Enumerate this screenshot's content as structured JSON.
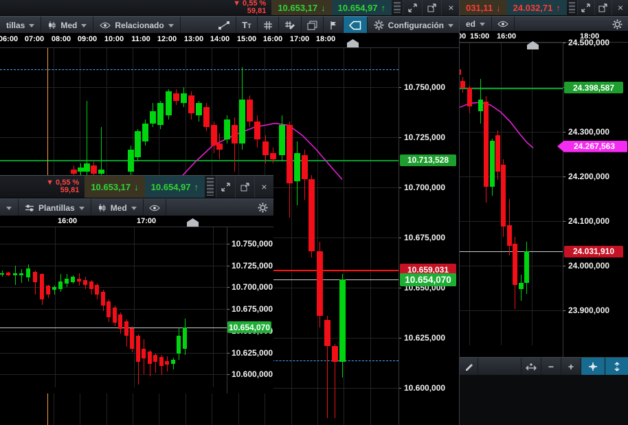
{
  "main_window": {
    "ticker": {
      "change_pct": "▼ 0,55 %",
      "change_value": "59,81",
      "sell": "10.653,17",
      "buy": "10.654,97"
    },
    "toolbar": {
      "templates": "tillas",
      "indicator": "Med",
      "related": "Relacionado",
      "settings": "Configuración"
    }
  },
  "second_window": {
    "ticker": {
      "change_pct": "▼ 0,55 %",
      "change_value": "59,81",
      "sell": "10.653,17",
      "buy": "10.654,97"
    },
    "toolbar": {
      "templates": "Plantillas",
      "indicator": "Med"
    }
  },
  "right_window": {
    "ticker": {
      "sell": "031,11",
      "buy": "24.032,71"
    },
    "toolbar": {
      "indicator": "ed"
    },
    "bottom_bar": {
      "minus": "−",
      "plus": "+"
    }
  },
  "chart_data": [
    {
      "id": "main",
      "type": "candlestick",
      "up_color": "#00d60f",
      "down_color": "#f30f18",
      "price_ticks": [
        {
          "label": "10.750,000",
          "value": 10750
        },
        {
          "label": "10.725,000",
          "value": 10725
        },
        {
          "label": "10.700,000",
          "value": 10700
        },
        {
          "label": "10.675,000",
          "value": 10675
        },
        {
          "label": "10.650,000",
          "value": 10650
        },
        {
          "label": "10.625,000",
          "value": 10625
        },
        {
          "label": "10.600,000",
          "value": 10600
        }
      ],
      "x_ticks": [
        {
          "label": "06:00",
          "x": 12
        },
        {
          "label": "07:00",
          "x": 50
        },
        {
          "label": "08:00",
          "x": 89
        },
        {
          "label": "09:00",
          "x": 127
        },
        {
          "label": "10:00",
          "x": 166
        },
        {
          "label": "11:00",
          "x": 205
        },
        {
          "label": "12:00",
          "x": 243
        },
        {
          "label": "13:00",
          "x": 282
        },
        {
          "label": "14:00",
          "x": 320
        },
        {
          "label": "15:00",
          "x": 359
        },
        {
          "label": "16:00",
          "x": 397
        },
        {
          "label": "17:00",
          "x": 436
        },
        {
          "label": "18:00",
          "x": 474
        }
      ],
      "hlines": [
        {
          "value": 10758.9,
          "color": "#4da6ff",
          "dash": true
        },
        {
          "value": 10713.528,
          "color": "#00a32e",
          "t": 2
        },
        {
          "value": 10659.031,
          "color": "#ff1212",
          "t": 2
        },
        {
          "value": 10654.07,
          "color": "#c9cdd1",
          "t": 1
        },
        {
          "value": 10613.7,
          "color": "#4da6ff",
          "dash": true
        }
      ],
      "vlines": [
        {
          "x": 69,
          "color": "#ff9b40"
        }
      ],
      "chips": [
        {
          "label": "10.713,528",
          "value": 10713.528,
          "bg": "#1e9e2e"
        },
        {
          "label": "10.659,031",
          "value": 10659.031,
          "bg": "#c51224"
        },
        {
          "label": "10.654,070",
          "value": 10654.07,
          "bg": "#1fae35",
          "big": true
        }
      ],
      "ma": {
        "color": "#e51fd4",
        "points": [
          [
            263,
            10705
          ],
          [
            285,
            10713
          ],
          [
            310,
            10721
          ],
          [
            340,
            10726
          ],
          [
            370,
            10730
          ],
          [
            400,
            10732
          ],
          [
            420,
            10731
          ],
          [
            440,
            10726
          ],
          [
            460,
            10719
          ],
          [
            480,
            10711
          ],
          [
            498,
            10704
          ]
        ]
      },
      "candles": [
        [
          107,
          10709,
          10711,
          10705,
          10707
        ],
        [
          117,
          10708,
          10712,
          10704,
          10710
        ],
        [
          126,
          10708,
          10743,
          10705,
          10712
        ],
        [
          136,
          10711,
          10713,
          10702,
          10707
        ],
        [
          147,
          10707,
          10730,
          10704,
          10709
        ],
        [
          190,
          10708,
          10721,
          10706,
          10719
        ],
        [
          200,
          10715,
          10729,
          10713,
          10728
        ],
        [
          211,
          10723,
          10734,
          10721,
          10732
        ],
        [
          222,
          10732,
          10742,
          10730,
          10738
        ],
        [
          233,
          10731,
          10743,
          10729,
          10742
        ],
        [
          245,
          10736,
          10749,
          10734,
          10748
        ],
        [
          256,
          10747,
          10749,
          10741,
          10743
        ],
        [
          267,
          10742,
          10750,
          10740,
          10747
        ],
        [
          278,
          10746,
          10748,
          10734,
          10737
        ],
        [
          289,
          10736,
          10743,
          10733,
          10742
        ],
        [
          300,
          10740,
          10742,
          10728,
          10730
        ],
        [
          311,
          10731,
          10733,
          10717,
          10721
        ],
        [
          319,
          10722,
          10727,
          10714,
          10719
        ],
        [
          330,
          10724,
          10736,
          10722,
          10734
        ],
        [
          341,
          10731,
          10735,
          10708,
          10722
        ],
        [
          352,
          10722,
          10760,
          10719,
          10744
        ],
        [
          363,
          10744,
          10746,
          10730,
          10733
        ],
        [
          374,
          10733,
          10736,
          10720,
          10724
        ],
        [
          386,
          10723,
          10726,
          10712,
          10716
        ],
        [
          397,
          10717,
          10720,
          10712,
          10714
        ],
        [
          410,
          10716,
          10736,
          10713,
          10731
        ],
        [
          421,
          10731,
          10733,
          10685,
          10702
        ],
        [
          432,
          10703,
          10723,
          10691,
          10717
        ],
        [
          443,
          10716,
          10719,
          10694,
          10704
        ],
        [
          453,
          10704,
          10706,
          10665,
          10668
        ],
        [
          465,
          10668,
          10673,
          10630,
          10636
        ],
        [
          476,
          10634,
          10636,
          10585,
          10621
        ],
        [
          487,
          10621,
          10622,
          10585,
          10613
        ],
        [
          498,
          10613,
          10657,
          10605,
          10654
        ]
      ]
    },
    {
      "id": "win2",
      "type": "candlestick",
      "up_color": "#00d60f",
      "down_color": "#f30f18",
      "price_ticks": [
        {
          "label": "10.750,000",
          "value": 10750
        },
        {
          "label": "10.725,000",
          "value": 10725
        },
        {
          "label": "10.700,000",
          "value": 10700
        },
        {
          "label": "10.675,000",
          "value": 10675
        },
        {
          "label": "10.650,000",
          "value": 10650
        },
        {
          "label": "10.625,000",
          "value": 10625
        },
        {
          "label": "10.600,000",
          "value": 10600
        }
      ],
      "x_ticks": [
        {
          "label": "16:00",
          "x": 84
        },
        {
          "label": "17:00",
          "x": 199
        }
      ],
      "hlines": [
        {
          "value": 10654.07,
          "color": "#c9cdd1",
          "t": 1
        }
      ],
      "vlines": [],
      "chips": [
        {
          "label": "10.654,070",
          "value": 10654.07,
          "bg": "#1fae35"
        }
      ],
      "candles": [
        [
          3,
          10715,
          10719,
          10712,
          10716
        ],
        [
          12,
          10717,
          10718,
          10713,
          10714
        ],
        [
          22,
          10714,
          10725,
          10703,
          10716
        ],
        [
          31,
          10714,
          10721,
          10705,
          10716
        ],
        [
          41,
          10711,
          10726,
          10707,
          10722
        ],
        [
          51,
          10718,
          10719,
          10692,
          10706
        ],
        [
          61,
          10715,
          10716,
          10680,
          10686
        ],
        [
          70,
          10702,
          10703,
          10688,
          10692
        ],
        [
          79,
          10697,
          10702,
          10692,
          10700
        ],
        [
          88,
          10698,
          10715,
          10695,
          10707
        ],
        [
          97,
          10704,
          10715,
          10700,
          10710
        ],
        [
          106,
          10706,
          10714,
          10704,
          10712
        ],
        [
          115,
          10710,
          10716,
          10702,
          10707
        ],
        [
          124,
          10708,
          10712,
          10698,
          10703
        ],
        [
          133,
          10707,
          10708,
          10692,
          10698
        ],
        [
          141,
          10703,
          10704,
          10686,
          10692
        ],
        [
          150,
          10695,
          10697,
          10673,
          10679
        ],
        [
          158,
          10684,
          10686,
          10660,
          10666
        ],
        [
          167,
          10677,
          10679,
          10655,
          10659
        ],
        [
          175,
          10669,
          10671,
          10647,
          10652
        ],
        [
          184,
          10661,
          10663,
          10632,
          10644
        ],
        [
          192,
          10653,
          10655,
          10625,
          10629
        ],
        [
          201,
          10644,
          10646,
          10588,
          10614
        ],
        [
          209,
          10629,
          10640,
          10600,
          10618
        ],
        [
          218,
          10626,
          10628,
          10598,
          10612
        ],
        [
          226,
          10622,
          10624,
          10602,
          10614
        ],
        [
          235,
          10620,
          10622,
          10599,
          10610
        ],
        [
          243,
          10615,
          10621,
          10603,
          10611
        ],
        [
          252,
          10612,
          10619,
          10606,
          10617
        ],
        [
          260,
          10624,
          10653,
          10617,
          10644
        ],
        [
          269,
          10629,
          10664,
          10622,
          10654
        ]
      ]
    },
    {
      "id": "right",
      "type": "candlestick",
      "up_color": "#00d60f",
      "down_color": "#f30f18",
      "price_ticks": [
        {
          "label": "24.500,000",
          "value": 24500
        },
        {
          "label": "24.400,000",
          "value": 24400
        },
        {
          "label": "24.300,000",
          "value": 24300
        },
        {
          "label": "24.200,000",
          "value": 24200
        },
        {
          "label": "24.100,000",
          "value": 24100
        },
        {
          "label": "24.000,000",
          "value": 24000
        },
        {
          "label": "23.900,000",
          "value": 23900
        }
      ],
      "x_ticks": [
        {
          "label": "00",
          "x": -3
        },
        {
          "label": "15:00",
          "x": 15
        },
        {
          "label": "16:00",
          "x": 54
        },
        {
          "label": "18:00",
          "x": 175
        }
      ],
      "hlines": [
        {
          "value": 24398.587,
          "color": "#00a32e",
          "t": 2
        },
        {
          "value": 24031.91,
          "color": "#c9cdd1",
          "t": 1
        }
      ],
      "vlines": [],
      "chips": [
        {
          "label": "24.398,587",
          "value": 24398.587,
          "bg": "#1e9e2e"
        },
        {
          "label": "24.267,563",
          "value": 24267.563,
          "bg": "#f42bf0",
          "arrow": true
        },
        {
          "label": "24.031,910",
          "value": 24031.91,
          "bg": "#c51224"
        }
      ],
      "ma": {
        "color": "#e51fd4",
        "points": [
          [
            0,
            24355
          ],
          [
            15,
            24364
          ],
          [
            30,
            24366
          ],
          [
            45,
            24360
          ],
          [
            60,
            24344
          ],
          [
            74,
            24322
          ],
          [
            87,
            24296
          ],
          [
            98,
            24276
          ],
          [
            107,
            24264
          ]
        ]
      },
      "candles": [
        [
          -2,
          24440,
          24452,
          24424,
          24428
        ],
        [
          4,
          24414,
          24423,
          24388,
          24398
        ],
        [
          14,
          24398,
          24403,
          24342,
          24357
        ],
        [
          30,
          24346,
          24418,
          24318,
          24372
        ],
        [
          38,
          24368,
          24380,
          24142,
          24177
        ],
        [
          47,
          24177,
          24285,
          24157,
          24280
        ],
        [
          55,
          24292,
          24303,
          24192,
          24211
        ],
        [
          63,
          24226,
          24238,
          24065,
          24088
        ],
        [
          72,
          24091,
          24150,
          24023,
          24045
        ],
        [
          80,
          24049,
          24065,
          23903,
          23957
        ],
        [
          89,
          23948,
          23980,
          23922,
          23962
        ],
        [
          97,
          23962,
          24054,
          23937,
          24032
        ]
      ]
    }
  ]
}
